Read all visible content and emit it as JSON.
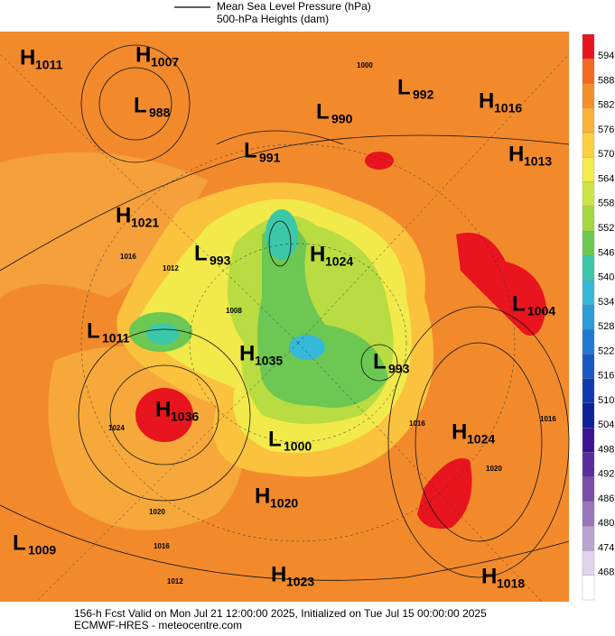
{
  "header": {
    "legend": [
      "Mean Sea Level Pressure (hPa)",
      "500-hPa Heights (dam)"
    ]
  },
  "centers": [
    {
      "kind": "H",
      "value": "1011"
    },
    {
      "kind": "H",
      "value": "1007"
    },
    {
      "kind": "L",
      "value": "988"
    },
    {
      "kind": "L",
      "value": "990"
    },
    {
      "kind": "L",
      "value": "992"
    },
    {
      "kind": "H",
      "value": "1016"
    },
    {
      "kind": "H",
      "value": "1013"
    },
    {
      "kind": "L",
      "value": "991"
    },
    {
      "kind": "H",
      "value": "1021"
    },
    {
      "kind": "L",
      "value": "993"
    },
    {
      "kind": "H",
      "value": "1024"
    },
    {
      "kind": "L",
      "value": "1004"
    },
    {
      "kind": "L",
      "value": "1011"
    },
    {
      "kind": "H",
      "value": "1036"
    },
    {
      "kind": "H",
      "value": "1035"
    },
    {
      "kind": "L",
      "value": "993"
    },
    {
      "kind": "L",
      "value": "1000"
    },
    {
      "kind": "H",
      "value": "1024"
    },
    {
      "kind": "H",
      "value": "1020"
    },
    {
      "kind": "L",
      "value": "1009"
    },
    {
      "kind": "H",
      "value": "1023"
    },
    {
      "kind": "H",
      "value": "1018"
    }
  ],
  "contour_labels": [
    "1000",
    "1016",
    "1012",
    "1008",
    "1024",
    "1020",
    "1016",
    "1012",
    "1016",
    "1020",
    "1016"
  ],
  "colorbar": {
    "ticks": [
      594,
      588,
      582,
      576,
      570,
      564,
      558,
      552,
      546,
      540,
      534,
      528,
      522,
      516,
      510,
      504,
      498,
      492,
      486,
      480,
      474,
      468
    ],
    "colors": [
      "#e8141e",
      "#f26a22",
      "#f5902c",
      "#fbb23a",
      "#fdd040",
      "#f3ec4a",
      "#cfe446",
      "#a6d842",
      "#6cc852",
      "#3cc8a8",
      "#36b8d8",
      "#2a9cd8",
      "#2078d0",
      "#1858c4",
      "#1038b0",
      "#0c2098",
      "#3a1490",
      "#5a2c9c",
      "#7a4ca8",
      "#9a74bc",
      "#bca4d0",
      "#e2d4ec",
      "#ffffff"
    ]
  },
  "footer": [
    "156-h Fcst Valid on Mon Jul 21 12:00:00 2025, Initialized on Tue Jul 15 00:00:00 2025",
    "ECMWF-HRES - meteocentre.com"
  ]
}
